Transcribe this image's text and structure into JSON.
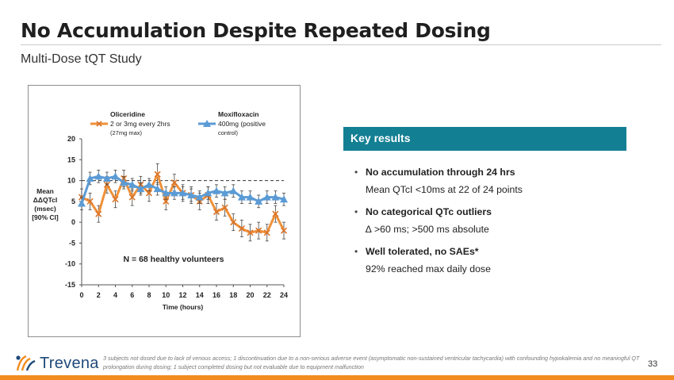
{
  "slide": {
    "title": "No Accumulation Despite Repeated Dosing",
    "subtitle": "Multi-Dose tQT Study",
    "page_number": "33"
  },
  "key_results": {
    "header": "Key results",
    "items": [
      {
        "bullet": "•",
        "heading": "No accumulation through 24 hrs",
        "detail": "Mean QTcI <10ms at 22 of 24 points"
      },
      {
        "bullet": "•",
        "heading": "No categorical QTc outliers",
        "detail": "∆ >60 ms;  >500 ms absolute"
      },
      {
        "bullet": "•",
        "heading": "Well tolerated, no SAEs*",
        "detail": "92% reached max daily dose"
      }
    ]
  },
  "footer": {
    "logo_text": "Trevena",
    "footnote": "3 subjects not dosed due to lack of venous access; 1 discontinuation due to a non-serious adverse event (asymptomatic non-sustained ventricular tachycardia) with confounding hypokalemia and no meaningful QT prolongation during dosing; 1 subject completed dosing but not evaluable due to equipment malfunction",
    "accent_color": "#f28c1e"
  },
  "chart_data": {
    "type": "line",
    "xlabel": "Time (hours)",
    "ylabel_lines": [
      "Mean",
      "ΔΔQTcI",
      "(msec)",
      "[90% CI]"
    ],
    "xlim": [
      0,
      24
    ],
    "ylim": [
      -15,
      20
    ],
    "xticks": [
      0,
      2,
      4,
      6,
      8,
      10,
      12,
      14,
      16,
      18,
      20,
      22,
      24
    ],
    "yticks": [
      20,
      15,
      10,
      5,
      0,
      -5,
      -10,
      -15
    ],
    "reference_line": 10,
    "annotation": "N = 68 healthy volunteers",
    "grid": false,
    "legend_position": "top",
    "series": [
      {
        "name": "Oliceridine",
        "legend_lines": [
          "2 or 3mg every 2hrs",
          "(27mg max)"
        ],
        "color": "#f0913a",
        "marker": "x",
        "x": [
          0,
          1,
          2,
          3,
          4,
          5,
          6,
          7,
          8,
          9,
          10,
          11,
          12,
          13,
          14,
          15,
          16,
          17,
          18,
          19,
          20,
          21,
          22,
          23,
          24
        ],
        "y": [
          6,
          5,
          2,
          9,
          5.5,
          10.5,
          6,
          9,
          7,
          11.5,
          5,
          9.5,
          7,
          6.5,
          5,
          6.5,
          2.5,
          3.5,
          0,
          -1.5,
          -2.5,
          -2,
          -2.5,
          2,
          -2
        ],
        "err": [
          2,
          2,
          2,
          2,
          2,
          2,
          2,
          2,
          2,
          2.5,
          2,
          2,
          2,
          2,
          2,
          2,
          2,
          2,
          2,
          2,
          2,
          2,
          2,
          2,
          2
        ]
      },
      {
        "name": "Moxifloxacin",
        "legend_lines": [
          "400mg (positive",
          "control)"
        ],
        "color": "#5b9bd5",
        "marker": "triangle",
        "x": [
          0,
          1,
          2,
          3,
          4,
          5,
          6,
          7,
          8,
          9,
          10,
          11,
          12,
          13,
          14,
          15,
          16,
          17,
          18,
          19,
          20,
          21,
          22,
          23,
          24
        ],
        "y": [
          4.5,
          10.5,
          11,
          10.5,
          11,
          9.5,
          9,
          8,
          9,
          8,
          7,
          7,
          7,
          6.5,
          6,
          7,
          7.5,
          7,
          7.5,
          6,
          6,
          5,
          6,
          6,
          5.5
        ],
        "err": [
          1.5,
          1.5,
          1.5,
          1.5,
          1.5,
          1.5,
          1.5,
          1.5,
          1.5,
          1.5,
          1.5,
          1.5,
          1.5,
          1.5,
          1.5,
          1.5,
          1.5,
          1.5,
          1.5,
          1.5,
          1.5,
          1.5,
          1.5,
          1.5,
          1.5
        ]
      }
    ]
  }
}
